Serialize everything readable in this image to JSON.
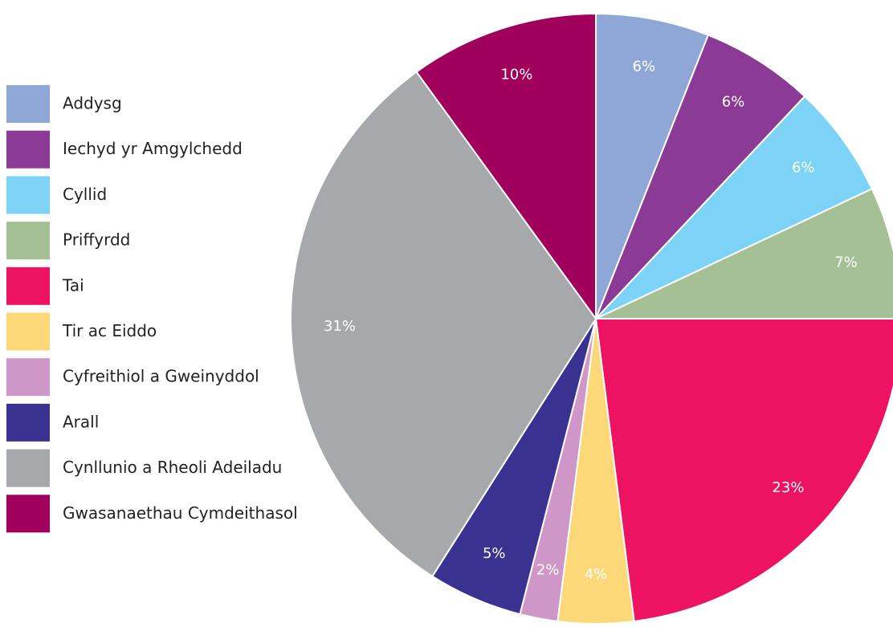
{
  "chart_data": {
    "type": "pie",
    "categories": [
      "Addysg",
      "Iechyd yr Amgylchedd",
      "Cyllid",
      "Priffyrdd",
      "Tai",
      "Tir ac Eiddo",
      "Cyfreithiol a Gweinyddol",
      "Arall",
      "Cynllunio a Rheoli Adeiladu",
      "Gwasanaethau Cymdeithasol"
    ],
    "values": [
      6,
      6,
      6,
      7,
      23,
      4,
      2,
      5,
      31,
      10
    ],
    "value_labels": [
      "6%",
      "6%",
      "6%",
      "7%",
      "23%",
      "4%",
      "2%",
      "5%",
      "31%",
      "10%"
    ],
    "colors": [
      "#8fa7d6",
      "#8b3a96",
      "#7dd3f5",
      "#a5c094",
      "#ed1262",
      "#fdd878",
      "#cf97c8",
      "#3a3290",
      "#a7a8ab",
      "#a0005b"
    ],
    "legend": "left"
  }
}
